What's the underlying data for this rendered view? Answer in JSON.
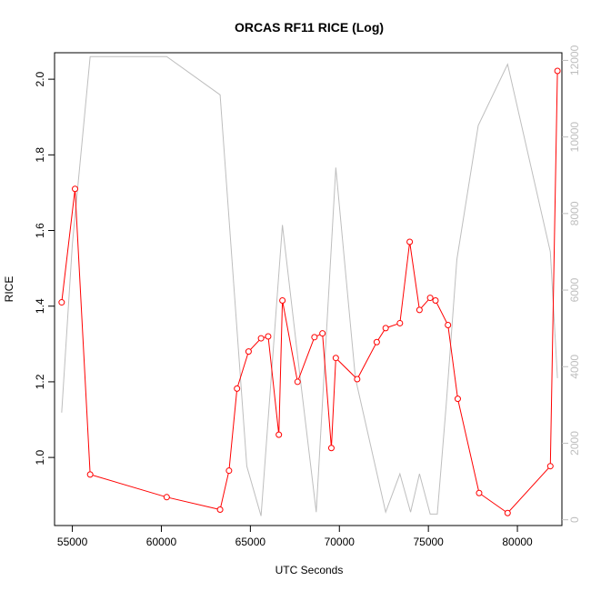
{
  "chart_data": {
    "type": "line",
    "title": "ORCAS RF11 RICE (Log)",
    "xlabel": "UTC Seconds",
    "ylabel": "RICE",
    "xlim": [
      54000,
      82500
    ],
    "ylim": [
      0.82,
      2.07
    ],
    "y2lim": [
      -150,
      12200
    ],
    "x_ticks": [
      55000,
      60000,
      65000,
      70000,
      75000,
      80000
    ],
    "y_ticks": [
      1.0,
      1.2,
      1.4,
      1.6,
      1.8,
      2.0
    ],
    "y2_ticks": [
      0,
      2000,
      4000,
      6000,
      8000,
      10000,
      12000
    ],
    "y_tick_labels": [
      "1.0",
      "1.2",
      "1.4",
      "1.6",
      "1.8",
      "2.0"
    ],
    "grid": false,
    "series": [
      {
        "axis": "left",
        "color": "#ff0000",
        "marker": "open-circle",
        "x": [
          54400,
          55150,
          56000,
          60300,
          63300,
          63800,
          64250,
          64900,
          65600,
          66000,
          66600,
          66800,
          67650,
          68600,
          69050,
          69550,
          69800,
          71000,
          72100,
          72600,
          73400,
          73950,
          74500,
          75100,
          75400,
          76100,
          76650,
          77850,
          79450,
          81850,
          82250
        ],
        "values": [
          1.41,
          1.71,
          0.955,
          0.895,
          0.862,
          0.965,
          1.182,
          1.28,
          1.315,
          1.32,
          1.06,
          1.415,
          1.2,
          1.318,
          1.328,
          1.025,
          1.263,
          1.207,
          1.305,
          1.342,
          1.355,
          1.57,
          1.39,
          1.422,
          1.415,
          1.35,
          1.155,
          0.906,
          0.853,
          0.977,
          2.022
        ]
      },
      {
        "axis": "right",
        "color": "#bebebe",
        "marker": "none",
        "x": [
          54400,
          55000,
          56000,
          60300,
          63300,
          64800,
          65600,
          66800,
          67800,
          68700,
          69800,
          70900,
          72600,
          73400,
          74000,
          74500,
          75100,
          75500,
          76000,
          76600,
          77800,
          79450,
          81850,
          82250
        ],
        "values": [
          2800,
          7200,
          12100,
          12100,
          11100,
          1400,
          100,
          7700,
          3700,
          200,
          9200,
          3700,
          200,
          1200,
          200,
          1200,
          150,
          150,
          3000,
          6800,
          10300,
          11900,
          7000,
          3700
        ]
      }
    ]
  }
}
